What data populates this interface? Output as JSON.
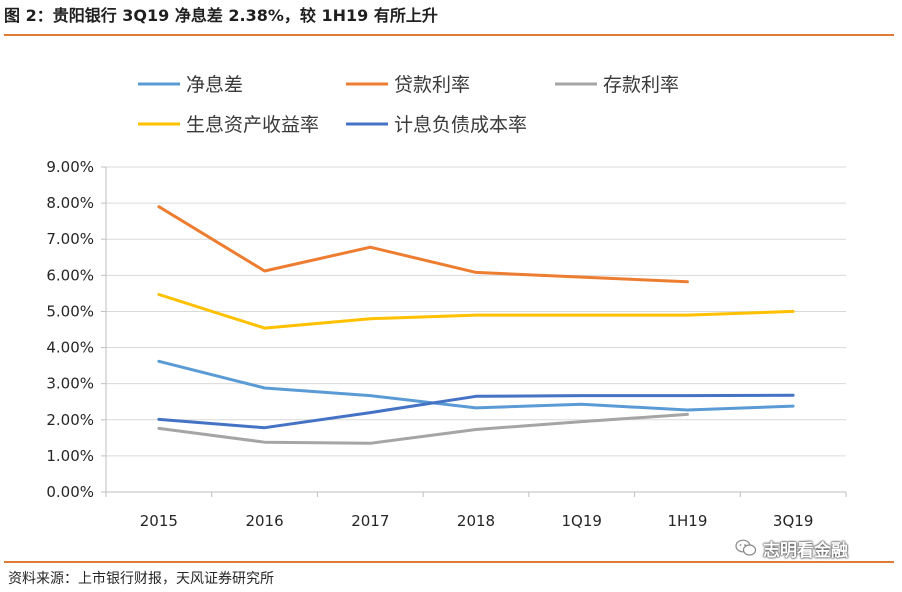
{
  "header": {
    "title": "图 2：贵阳银行 3Q19 净息差 2.38%，较 1H19 有所上升"
  },
  "footer": {
    "source": "资料来源：上市银行财报，天风证券研究所",
    "watermark": "志明看金融"
  },
  "colors": {
    "accent_rule": "#e07b33",
    "grid": "#d9d9d9",
    "axis": "#bfbfbf"
  },
  "chart_data": {
    "type": "line",
    "title": "",
    "xlabel": "",
    "ylabel": "",
    "categories": [
      "2015",
      "2016",
      "2017",
      "2018",
      "1Q19",
      "1H19",
      "3Q19"
    ],
    "ylim": [
      0,
      9
    ],
    "yticks": [
      0,
      1,
      2,
      3,
      4,
      5,
      6,
      7,
      8,
      9
    ],
    "ytick_labels": [
      "0.00%",
      "1.00%",
      "2.00%",
      "3.00%",
      "4.00%",
      "5.00%",
      "6.00%",
      "7.00%",
      "8.00%",
      "9.00%"
    ],
    "grid": true,
    "legend_position": "top",
    "series": [
      {
        "name": "净息差",
        "color": "#5b9bd5",
        "values": [
          3.62,
          2.88,
          2.67,
          2.33,
          2.43,
          2.27,
          2.38
        ]
      },
      {
        "name": "贷款利率",
        "color": "#ed7d31",
        "values": [
          7.9,
          6.12,
          6.78,
          6.08,
          5.95,
          5.82,
          null
        ]
      },
      {
        "name": "存款利率",
        "color": "#a5a5a5",
        "values": [
          1.76,
          1.38,
          1.35,
          1.73,
          1.95,
          2.15,
          null
        ]
      },
      {
        "name": "生息资产收益率",
        "color": "#ffc000",
        "values": [
          5.47,
          4.54,
          4.8,
          4.9,
          4.9,
          4.9,
          5.0
        ]
      },
      {
        "name": "计息负债成本率",
        "color": "#4472c4",
        "values": [
          2.01,
          1.78,
          2.2,
          2.65,
          2.67,
          2.67,
          2.68
        ]
      }
    ]
  }
}
